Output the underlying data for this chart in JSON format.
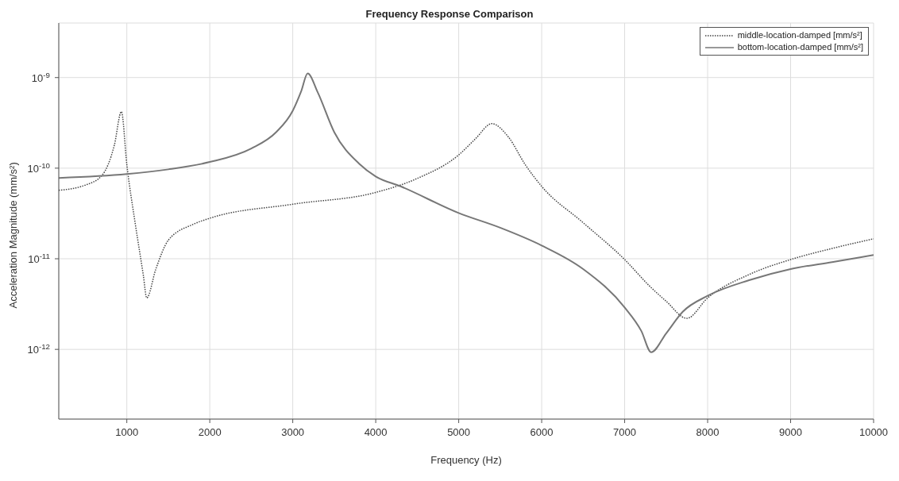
{
  "chart_data": {
    "type": "line",
    "title": "Frequency Response Comparison",
    "xlabel": "Frequency (Hz)",
    "ylabel": "Acceleration Magnitude (mm/s²)",
    "log": "y",
    "grid": true,
    "legend": "top right",
    "marker": "none",
    "xlim": [
      180,
      10000
    ],
    "xticks": [
      1000,
      2000,
      3000,
      4000,
      5000,
      6000,
      7000,
      8000,
      9000,
      10000
    ],
    "ylim": [
      1.7e-13,
      4e-09
    ],
    "yticks": [
      {
        "value": 1e-12,
        "label": "10$^{-12}$"
      },
      {
        "value": 1e-11,
        "label": "10$^{-11}$"
      },
      {
        "value": 1e-10,
        "label": "10$^{-10}$"
      },
      {
        "value": 1e-09,
        "label": "10$^{-9}$"
      }
    ],
    "series": [
      {
        "name": "middle-location-damped [mm/s²]",
        "color": "#444444",
        "line_style": "dotted",
        "x": [
          180,
          500,
          700,
          850,
          935,
          1000,
          1100,
          1200,
          1240,
          1350,
          1500,
          1800,
          2000,
          3000,
          4000,
          4500,
          5000,
          5200,
          5400,
          5600,
          5800,
          6000,
          6500,
          7000,
          7300,
          7500,
          7750,
          8000,
          8500,
          9000,
          9500,
          10000
        ],
        "values": [
          5.7e-11,
          6.5e-11,
          8.3e-11,
          1.8e-10,
          4.2e-10,
          1.1e-10,
          2.5e-11,
          6.5e-12,
          3.7e-12,
          7.7e-12,
          1.6e-11,
          2.4e-11,
          2.8e-11,
          4e-11,
          5.4e-11,
          7.7e-11,
          1.4e-10,
          2.1e-10,
          3.1e-10,
          2.2e-10,
          1.1e-10,
          6.3e-11,
          2.5e-11,
          9.8e-12,
          5e-12,
          3.4e-12,
          2.2e-12,
          3.7e-12,
          6.7e-12,
          9.8e-12,
          1.3e-11,
          1.66e-11
        ]
      },
      {
        "name": "bottom-location-damped [mm/s²]",
        "color": "#777777",
        "line_style": "solid",
        "x": [
          180,
          1000,
          1500,
          2000,
          2500,
          2800,
          3000,
          3100,
          3180,
          3300,
          3500,
          3800,
          4000,
          4300,
          5000,
          5500,
          6000,
          6500,
          7000,
          7200,
          7320,
          7500,
          7700,
          8000,
          8500,
          9000,
          9500,
          10000
        ],
        "values": [
          7.8e-11,
          8.6e-11,
          9.7e-11,
          1.17e-10,
          1.65e-10,
          2.5e-10,
          4.3e-10,
          7e-10,
          1.11e-09,
          6.9e-10,
          2.5e-10,
          1.12e-10,
          8.1e-11,
          6.3e-11,
          3.2e-11,
          2.2e-11,
          1.4e-11,
          7.7e-12,
          2.9e-12,
          1.6e-12,
          9.3e-13,
          1.5e-12,
          2.6e-12,
          3.9e-12,
          5.8e-12,
          7.7e-12,
          9.2e-12,
          1.1e-11
        ]
      }
    ]
  }
}
